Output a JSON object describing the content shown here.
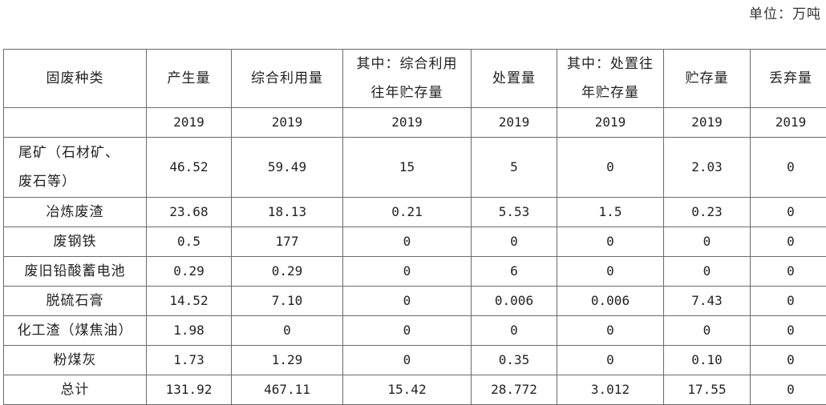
{
  "unit_label": "单位：万吨",
  "headers": [
    "固废种类",
    "产生量",
    "综合利用量",
    "其中：综合利用往年贮存量",
    "处置量",
    "其中：处置往年贮存量",
    "贮存量",
    "丢弃量"
  ],
  "header_lines": {
    "h3_line1": "其中：综合利用",
    "h3_line2": "往年贮存量",
    "h5_line1": "其中：处置往",
    "h5_line2": "年贮存量"
  },
  "year": "2019",
  "rows": [
    {
      "category": "尾矿（石材矿、废石等）",
      "category_line1": "尾矿（石材矿、",
      "category_line2": "废石等）",
      "values": [
        "46.52",
        "59.49",
        "15",
        "5",
        "0",
        "2.03",
        "0"
      ]
    },
    {
      "category": "冶炼废渣",
      "values": [
        "23.68",
        "18.13",
        "0.21",
        "5.53",
        "1.5",
        "0.23",
        "0"
      ]
    },
    {
      "category": "废钢铁",
      "values": [
        "0.5",
        "177",
        "0",
        "0",
        "0",
        "0",
        "0"
      ]
    },
    {
      "category": "废旧铅酸蓄电池",
      "values": [
        "0.29",
        "0.29",
        "0",
        "6",
        "0",
        "0",
        "0"
      ]
    },
    {
      "category": "脱硫石膏",
      "values": [
        "14.52",
        "7.10",
        "0",
        "0.006",
        "0.006",
        "7.43",
        "0"
      ]
    },
    {
      "category": "化工渣（煤焦油）",
      "values": [
        "1.98",
        "0",
        "0",
        "0",
        "0",
        "0",
        "0"
      ]
    },
    {
      "category": "粉煤灰",
      "values": [
        "1.73",
        "1.29",
        "0",
        "0.35",
        "0",
        "0.10",
        "0"
      ]
    },
    {
      "category": "总计",
      "values": [
        "131.92",
        "467.11",
        "15.42",
        "28.772",
        "3.012",
        "17.55",
        "0"
      ]
    }
  ]
}
